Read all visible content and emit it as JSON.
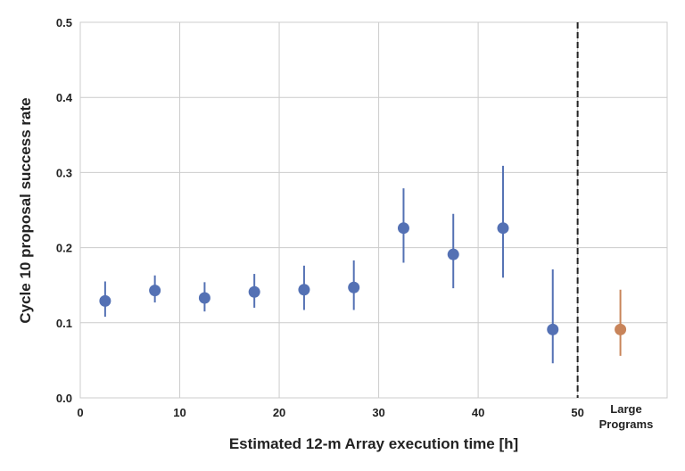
{
  "chart_data": {
    "type": "scatter",
    "xlabel": "Estimated 12-m Array execution time  [h]",
    "ylabel": "Cycle 10 proposal success rate",
    "xlim": [
      0,
      59
    ],
    "ylim": [
      0,
      0.5
    ],
    "x_ticks": [
      0,
      10,
      20,
      30,
      40,
      50
    ],
    "y_ticks": [
      "0.0",
      "0.1",
      "0.2",
      "0.3",
      "0.4",
      "0.5"
    ],
    "grid": true,
    "divider_x": 50,
    "colors": {
      "main": "#5471b4",
      "large": "#c8845a",
      "divider": "#222222",
      "grid": "#cccccc"
    },
    "series": [
      {
        "x": [
          2.5,
          7.5,
          12.5,
          17.5,
          22.5,
          27.5,
          32.5,
          37.5,
          42.5,
          47.5
        ],
        "y": [
          0.129,
          0.143,
          0.133,
          0.141,
          0.144,
          0.147,
          0.226,
          0.191,
          0.226,
          0.091
        ],
        "y_low": [
          0.108,
          0.127,
          0.115,
          0.12,
          0.117,
          0.117,
          0.18,
          0.146,
          0.16,
          0.046
        ],
        "y_high": [
          0.155,
          0.163,
          0.154,
          0.165,
          0.176,
          0.183,
          0.279,
          0.245,
          0.309,
          0.171
        ]
      },
      {
        "x": [
          54.3
        ],
        "y": [
          0.091
        ],
        "y_low": [
          0.056
        ],
        "y_high": [
          0.144
        ]
      }
    ],
    "large_programs_label": [
      "Large",
      "Programs"
    ]
  }
}
